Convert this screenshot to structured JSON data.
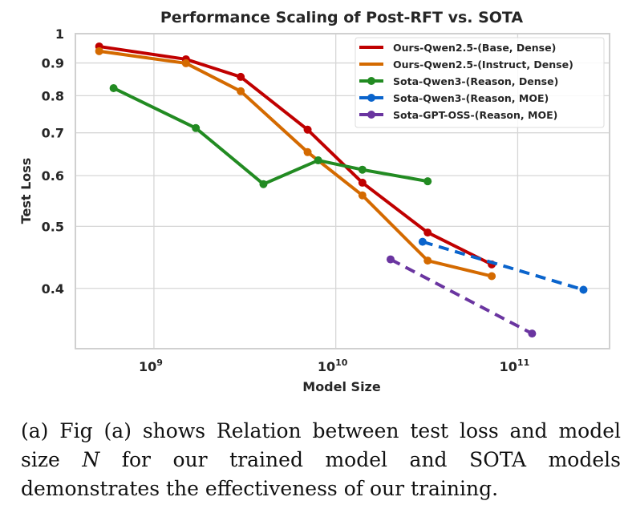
{
  "chart_data": {
    "type": "line",
    "title": "Performance Scaling of Post-RFT vs. SOTA",
    "xlabel": "Model Size",
    "ylabel": "Test Loss",
    "xscale": "log",
    "yscale": "log",
    "xlim": [
      370000000.0,
      320000000000.0
    ],
    "ylim": [
      0.322,
      1.0
    ],
    "xticks": [
      {
        "value": 1000000000.0,
        "base": "10",
        "exp": "9"
      },
      {
        "value": 10000000000.0,
        "base": "10",
        "exp": "10"
      },
      {
        "value": 100000000000.0,
        "base": "10",
        "exp": "11"
      }
    ],
    "yticks": [
      {
        "value": 1,
        "label": "1"
      },
      {
        "value": 0.9,
        "label": "0.9"
      },
      {
        "value": 0.8,
        "label": "0.8"
      },
      {
        "value": 0.7,
        "label": "0.7"
      },
      {
        "value": 0.6,
        "label": "0.6"
      },
      {
        "value": 0.5,
        "label": "0.5"
      },
      {
        "value": 0.4,
        "label": "0.4"
      }
    ],
    "grid": true,
    "legend_position": "top-right",
    "series": [
      {
        "name": "Ours-Qwen2.5-(Base, Dense)",
        "color": "#c00000",
        "dashed": false,
        "legend_marker": false,
        "x": [
          500000000.0,
          1500000000.0,
          3000000000.0,
          7000000000.0,
          14000000000.0,
          32000000000.0,
          72000000000.0
        ],
        "y": [
          0.955,
          0.912,
          0.856,
          0.708,
          0.585,
          0.489,
          0.436
        ]
      },
      {
        "name": "Ours-Qwen2.5-(Instruct, Dense)",
        "color": "#d46a00",
        "dashed": false,
        "legend_marker": false,
        "x": [
          500000000.0,
          1500000000.0,
          3000000000.0,
          7000000000.0,
          14000000000.0,
          32000000000.0,
          72000000000.0
        ],
        "y": [
          0.939,
          0.899,
          0.813,
          0.653,
          0.559,
          0.442,
          0.418
        ]
      },
      {
        "name": "Sota-Qwen3-(Reason, Dense)",
        "color": "#228b22",
        "dashed": false,
        "legend_marker": true,
        "x": [
          600000000.0,
          1700000000.0,
          4000000000.0,
          8000000000.0,
          14000000000.0,
          32000000000.0
        ],
        "y": [
          0.822,
          0.712,
          0.582,
          0.634,
          0.613,
          0.588
        ]
      },
      {
        "name": "Sota-Qwen3-(Reason, MOE)",
        "color": "#0a64cc",
        "dashed": true,
        "legend_marker": true,
        "x": [
          30000000000.0,
          230000000000.0
        ],
        "y": [
          0.473,
          0.398
        ]
      },
      {
        "name": "Sota-GPT-OSS-(Reason, MOE)",
        "color": "#6a35a0",
        "dashed": true,
        "legend_marker": true,
        "x": [
          20000000000.0,
          120000000000.0
        ],
        "y": [
          0.444,
          0.34
        ]
      }
    ]
  },
  "caption": {
    "part1": "(a) Fig (a) shows Relation between test loss and model size ",
    "var": "N",
    "part2": " for our trained model and SOTA models demonstrates the effectiveness of our training."
  }
}
